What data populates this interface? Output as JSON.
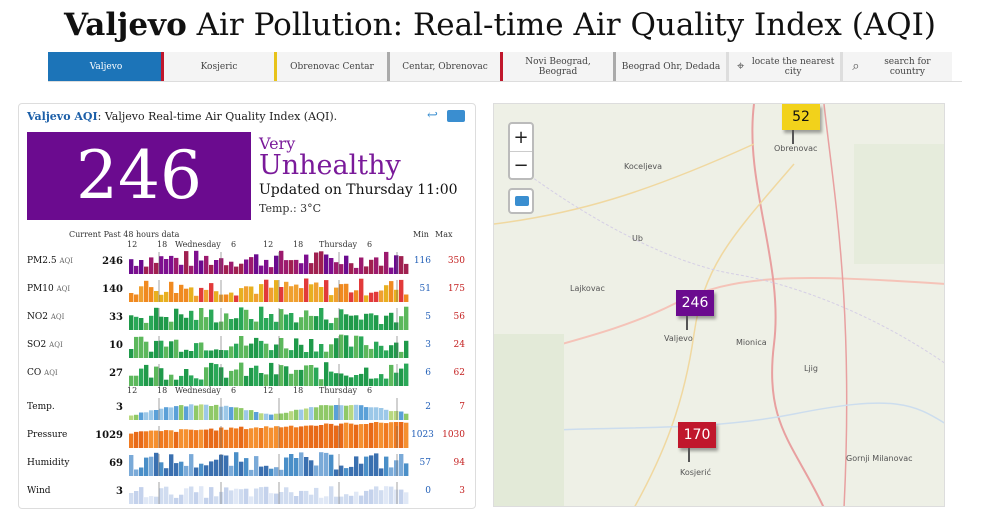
{
  "title": {
    "city": "Valjevo",
    "rest": " Air Pollution: Real-time Air Quality Index (AQI)"
  },
  "nav": {
    "items": [
      {
        "label": "Valjevo",
        "color": "#1c74b8",
        "active": true
      },
      {
        "label": "Kosjeric",
        "color": "#c0172c"
      },
      {
        "label": "Obrenovac Centar",
        "color": "#e8c31a"
      },
      {
        "label": "Centar, Obrenovac",
        "color": "#aaaaaa"
      },
      {
        "label": "Novi Beograd, Beograd",
        "color": "#c0172c"
      },
      {
        "label": "Beograd Ohr, Dedada",
        "color": "#aaaaaa"
      }
    ],
    "locate_label": "locate the nearest city",
    "search_label": "search for country"
  },
  "card": {
    "head_city": "Valjevo AQI",
    "head_desc": ": Valjevo Real-time Air Quality Index (AQI).",
    "aqi": "246",
    "level_line1": "Very",
    "level_line2": "Unhealthy",
    "updated": "Updated on Thursday 11:00",
    "temp": "Temp.: 3°C",
    "header_current": "Current  Past 48 hours data",
    "header_min": "Min",
    "header_max": "Max",
    "ticks": {
      "t12": "12",
      "t18": "18",
      "wed": "Wednesday",
      "t6": "6",
      "t12b": "12",
      "t18b": "18",
      "thu": "Thursday",
      "t6b": "6"
    },
    "rows": [
      {
        "label": "PM2.5",
        "unit": "AQI",
        "current": "246",
        "min": "116",
        "max": "350",
        "palette": "pm25"
      },
      {
        "label": "PM10",
        "unit": "AQI",
        "current": "140",
        "min": "51",
        "max": "175",
        "palette": "pm10"
      },
      {
        "label": "NO2",
        "unit": "AQI",
        "current": "33",
        "min": "5",
        "max": "56",
        "palette": "green"
      },
      {
        "label": "SO2",
        "unit": "AQI",
        "current": "10",
        "min": "3",
        "max": "24",
        "palette": "green"
      },
      {
        "label": "CO",
        "unit": "AQI",
        "current": "27",
        "min": "6",
        "max": "62",
        "palette": "green"
      },
      {
        "label": "Temp.",
        "unit": "",
        "current": "3",
        "min": "2",
        "max": "7",
        "palette": "temp"
      },
      {
        "label": "Pressure",
        "unit": "",
        "current": "1029",
        "min": "1023",
        "max": "1030",
        "palette": "pressure"
      },
      {
        "label": "Humidity",
        "unit": "",
        "current": "69",
        "min": "57",
        "max": "94",
        "palette": "humidity"
      },
      {
        "label": "Wind",
        "unit": "",
        "current": "3",
        "min": "0",
        "max": "3",
        "palette": "wind"
      }
    ]
  },
  "map": {
    "zoom_in": "+",
    "zoom_out": "−",
    "markers": [
      {
        "value": "52",
        "bg": "#f2d21b",
        "fg": "#111"
      },
      {
        "value": "246",
        "bg": "#6b0b8f",
        "fg": "#fff"
      },
      {
        "value": "170",
        "bg": "#c0172c",
        "fg": "#fff"
      }
    ],
    "places": [
      "Obrenovac",
      "Koceljeva",
      "Ub",
      "Lajkovac",
      "Valjevo",
      "Mionica",
      "Ljig",
      "Gornji Milanovac",
      "Kosjerić"
    ]
  }
}
